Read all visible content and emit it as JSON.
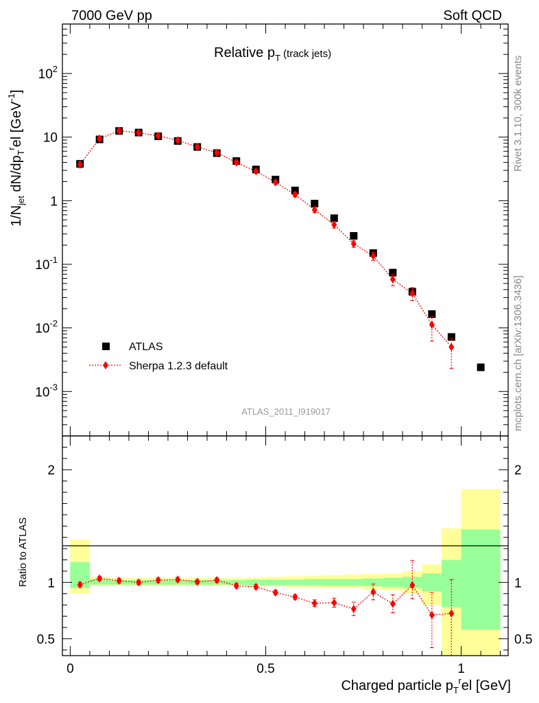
{
  "header": {
    "left": "7000 GeV pp",
    "right": "Soft QCD"
  },
  "side_labels": {
    "rivet": "Rivet 3.1.10,  300k events",
    "mcplots": "mcplots.cern.ch [arXiv:1306.3436]"
  },
  "colors": {
    "atlas": "#000000",
    "sherpa": "#ff0000",
    "band_inner": "#99ff99",
    "band_outer": "#ffff99"
  },
  "chart_data": [
    {
      "type": "scatter",
      "title": "Relative p_T (track jets)",
      "ylabel": "1/N_jet dN/dp_T^rel [GeV^-1]",
      "yscale": "log",
      "ylim": [
        0.0002,
        600
      ],
      "xlim": [
        -0.02,
        1.12
      ],
      "y_ticks": [
        "10^-3",
        "10^-2",
        "10^-1",
        "1",
        "10",
        "10^2"
      ],
      "analysis_label": "ATLAS_2011_I919017",
      "legend": {
        "placement": "bottom-left",
        "entries": [
          "ATLAS",
          "Sherpa 1.2.3 default"
        ]
      },
      "series": [
        {
          "name": "ATLAS",
          "marker": "square",
          "x": [
            0.025,
            0.075,
            0.125,
            0.175,
            0.225,
            0.275,
            0.325,
            0.375,
            0.425,
            0.475,
            0.525,
            0.575,
            0.625,
            0.675,
            0.725,
            0.775,
            0.825,
            0.875,
            0.925,
            0.975,
            1.05
          ],
          "y": [
            3.8,
            9.2,
            12.5,
            11.8,
            10.3,
            8.7,
            7.0,
            5.6,
            4.2,
            3.1,
            2.15,
            1.45,
            0.9,
            0.53,
            0.28,
            0.15,
            0.074,
            0.037,
            0.0165,
            0.0072,
            0.0024
          ]
        },
        {
          "name": "Sherpa 1.2.3 default",
          "marker": "diamond",
          "line": "dotted",
          "x": [
            0.025,
            0.075,
            0.125,
            0.175,
            0.225,
            0.275,
            0.325,
            0.375,
            0.425,
            0.475,
            0.525,
            0.575,
            0.625,
            0.675,
            0.725,
            0.775,
            0.825,
            0.875,
            0.925,
            0.975
          ],
          "y": [
            3.7,
            9.5,
            12.6,
            11.7,
            10.5,
            8.9,
            7.0,
            5.7,
            4.0,
            2.9,
            1.95,
            1.25,
            0.72,
            0.42,
            0.21,
            0.135,
            0.058,
            0.035,
            0.0112,
            0.005
          ],
          "err_low": [
            0.4,
            0.9,
            1.0,
            0.8,
            0.7,
            0.6,
            0.5,
            0.4,
            0.3,
            0.2,
            0.15,
            0.1,
            0.07,
            0.05,
            0.025,
            0.02,
            0.012,
            0.008,
            0.005,
            0.0027
          ],
          "err_high": [
            0.4,
            0.9,
            1.0,
            0.8,
            0.7,
            0.6,
            0.5,
            0.4,
            0.3,
            0.2,
            0.15,
            0.1,
            0.07,
            0.05,
            0.025,
            0.02,
            0.012,
            0.008,
            0.004,
            0.0018
          ]
        }
      ]
    },
    {
      "type": "scatter",
      "ylabel": "Ratio to ATLAS",
      "xlabel": "Charged particle p_T^rel [GeV]",
      "ylim": [
        0.35,
        2.3
      ],
      "xlim": [
        -0.02,
        1.12
      ],
      "x_ticks": [
        "0",
        "0.5",
        "1"
      ],
      "y_ticks": [
        "0.5",
        "1",
        "2"
      ],
      "bands": [
        {
          "lo": 0.0,
          "hi": 0.05,
          "inner": [
            0.95,
            1.18
          ],
          "outer": [
            0.9,
            1.38
          ]
        },
        {
          "lo": 0.05,
          "hi": 0.1,
          "inner": [
            0.98,
            1.03
          ],
          "outer": [
            0.97,
            1.05
          ]
        },
        {
          "lo": 0.1,
          "hi": 0.15,
          "inner": [
            0.98,
            1.02
          ],
          "outer": [
            0.97,
            1.04
          ]
        },
        {
          "lo": 0.15,
          "hi": 0.2,
          "inner": [
            0.98,
            1.02
          ],
          "outer": [
            0.97,
            1.04
          ]
        },
        {
          "lo": 0.2,
          "hi": 0.25,
          "inner": [
            0.98,
            1.02
          ],
          "outer": [
            0.97,
            1.04
          ]
        },
        {
          "lo": 0.25,
          "hi": 0.3,
          "inner": [
            0.98,
            1.02
          ],
          "outer": [
            0.97,
            1.04
          ]
        },
        {
          "lo": 0.3,
          "hi": 0.35,
          "inner": [
            0.98,
            1.02
          ],
          "outer": [
            0.97,
            1.04
          ]
        },
        {
          "lo": 0.35,
          "hi": 0.4,
          "inner": [
            0.98,
            1.02
          ],
          "outer": [
            0.97,
            1.04
          ]
        },
        {
          "lo": 0.4,
          "hi": 0.45,
          "inner": [
            0.98,
            1.02
          ],
          "outer": [
            0.97,
            1.04
          ]
        },
        {
          "lo": 0.45,
          "hi": 0.5,
          "inner": [
            0.975,
            1.025
          ],
          "outer": [
            0.965,
            1.045
          ]
        },
        {
          "lo": 0.5,
          "hi": 0.55,
          "inner": [
            0.975,
            1.025
          ],
          "outer": [
            0.965,
            1.05
          ]
        },
        {
          "lo": 0.55,
          "hi": 0.6,
          "inner": [
            0.975,
            1.025
          ],
          "outer": [
            0.96,
            1.055
          ]
        },
        {
          "lo": 0.6,
          "hi": 0.65,
          "inner": [
            0.975,
            1.03
          ],
          "outer": [
            0.955,
            1.06
          ]
        },
        {
          "lo": 0.65,
          "hi": 0.7,
          "inner": [
            0.97,
            1.03
          ],
          "outer": [
            0.95,
            1.065
          ]
        },
        {
          "lo": 0.7,
          "hi": 0.75,
          "inner": [
            0.97,
            1.03
          ],
          "outer": [
            0.95,
            1.07
          ]
        },
        {
          "lo": 0.75,
          "hi": 0.8,
          "inner": [
            0.965,
            1.035
          ],
          "outer": [
            0.94,
            1.075
          ]
        },
        {
          "lo": 0.8,
          "hi": 0.85,
          "inner": [
            0.96,
            1.04
          ],
          "outer": [
            0.93,
            1.08
          ]
        },
        {
          "lo": 0.85,
          "hi": 0.9,
          "inner": [
            0.95,
            1.05
          ],
          "outer": [
            0.9,
            1.1
          ]
        },
        {
          "lo": 0.9,
          "hi": 0.95,
          "inner": [
            0.92,
            1.08
          ],
          "outer": [
            0.8,
            1.16
          ]
        },
        {
          "lo": 0.95,
          "hi": 1.0,
          "inner": [
            0.78,
            1.2
          ],
          "outer": [
            0.35,
            1.48
          ]
        },
        {
          "lo": 1.0,
          "hi": 1.1,
          "inner": [
            0.58,
            1.47
          ],
          "outer": [
            0.35,
            1.83
          ]
        }
      ],
      "series": [
        {
          "name": "Sherpa 1.2.3 default",
          "marker": "diamond",
          "line": "dotted",
          "x": [
            0.025,
            0.075,
            0.125,
            0.175,
            0.225,
            0.275,
            0.325,
            0.375,
            0.425,
            0.475,
            0.525,
            0.575,
            0.625,
            0.675,
            0.725,
            0.775,
            0.825,
            0.875,
            0.925,
            0.975
          ],
          "y": [
            0.98,
            1.035,
            1.015,
            1.0,
            1.02,
            1.025,
            1.005,
            1.02,
            0.97,
            0.96,
            0.91,
            0.87,
            0.815,
            0.82,
            0.765,
            0.915,
            0.81,
            0.975,
            0.71,
            0.725
          ],
          "err_low": [
            0.02,
            0.02,
            0.02,
            0.02,
            0.02,
            0.02,
            0.02,
            0.02,
            0.02,
            0.02,
            0.02,
            0.02,
            0.03,
            0.04,
            0.06,
            0.07,
            0.08,
            0.12,
            0.29,
            0.4
          ],
          "err_high": [
            0.02,
            0.02,
            0.02,
            0.02,
            0.02,
            0.02,
            0.02,
            0.02,
            0.02,
            0.02,
            0.02,
            0.02,
            0.03,
            0.04,
            0.06,
            0.07,
            0.08,
            0.22,
            0.2,
            0.3
          ]
        }
      ]
    }
  ]
}
